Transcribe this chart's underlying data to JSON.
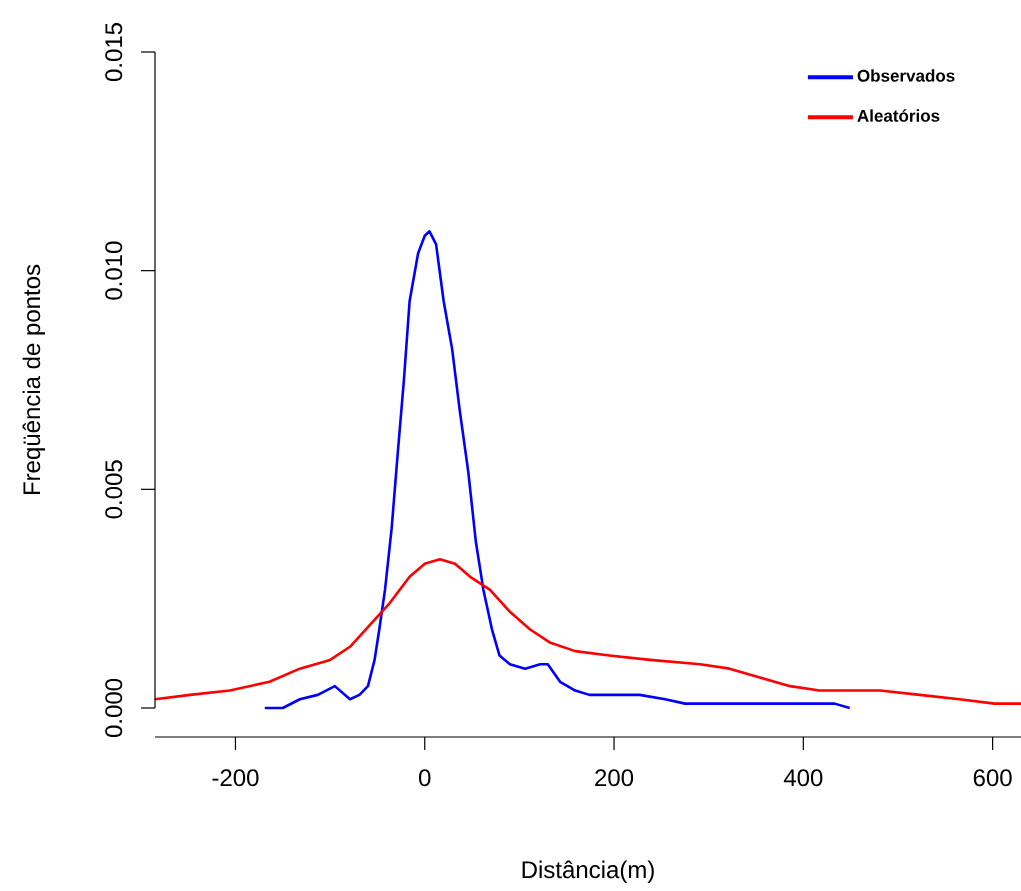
{
  "chart_data": {
    "type": "line",
    "xlabel": "Distância(m)",
    "ylabel": "Freqüência de pontos",
    "xlim": [
      -285,
      630
    ],
    "ylim": [
      0,
      0.015
    ],
    "xticks": [
      -200,
      0,
      200,
      400,
      600
    ],
    "yticks": [
      {
        "value": 0,
        "label": "0.000"
      },
      {
        "value": 0.005,
        "label": "0.005"
      },
      {
        "value": 0.01,
        "label": "0.010"
      },
      {
        "value": 0.015,
        "label": "0.015"
      }
    ],
    "legend": "top right",
    "marker": "none",
    "line_style": "solid",
    "series": [
      {
        "name": "Observados",
        "color": "#0000ff",
        "x": [
          -169,
          -150,
          -132,
          -113,
          -95,
          -79,
          -69,
          -60,
          -53,
          -48,
          -42,
          -35,
          -29,
          -22,
          -16,
          -7,
          0,
          5,
          12,
          20,
          29,
          37,
          46,
          54,
          62,
          71,
          79,
          90,
          106,
          122,
          130,
          143,
          159,
          174,
          190,
          206,
          227,
          254,
          275,
          301,
          317,
          338,
          370,
          386,
          417,
          433,
          449
        ],
        "values": [
          0,
          0,
          0.0002,
          0.0003,
          0.0005,
          0.0002,
          0.0003,
          0.0005,
          0.0011,
          0.0018,
          0.0027,
          0.0041,
          0.0057,
          0.0075,
          0.0093,
          0.0104,
          0.0108,
          0.0109,
          0.0106,
          0.0093,
          0.0082,
          0.0068,
          0.0054,
          0.0038,
          0.0027,
          0.0018,
          0.0012,
          0.001,
          0.0009,
          0.001,
          0.001,
          0.0006,
          0.0004,
          0.0003,
          0.0003,
          0.0003,
          0.0003,
          0.0002,
          0.0001,
          0.0001,
          0.0001,
          0.0001,
          0.0001,
          0.0001,
          0.0001,
          0.0001,
          0
        ]
      },
      {
        "name": "Aleatórios",
        "color": "#ff0000",
        "x": [
          -285,
          -248,
          -206,
          -164,
          -132,
          -100,
          -79,
          -58,
          -37,
          -16,
          0,
          16,
          32,
          48,
          69,
          90,
          111,
          132,
          159,
          195,
          238,
          291,
          322,
          354,
          386,
          417,
          481,
          523,
          565,
          602,
          630
        ],
        "values": [
          0.0002,
          0.0003,
          0.0004,
          0.0006,
          0.0009,
          0.0011,
          0.0014,
          0.0019,
          0.0024,
          0.003,
          0.0033,
          0.0034,
          0.0033,
          0.003,
          0.0027,
          0.0022,
          0.0018,
          0.0015,
          0.0013,
          0.0012,
          0.0011,
          0.001,
          0.0009,
          0.0007,
          0.0005,
          0.0004,
          0.0004,
          0.0003,
          0.0002,
          0.0001,
          0.0001
        ]
      }
    ]
  }
}
